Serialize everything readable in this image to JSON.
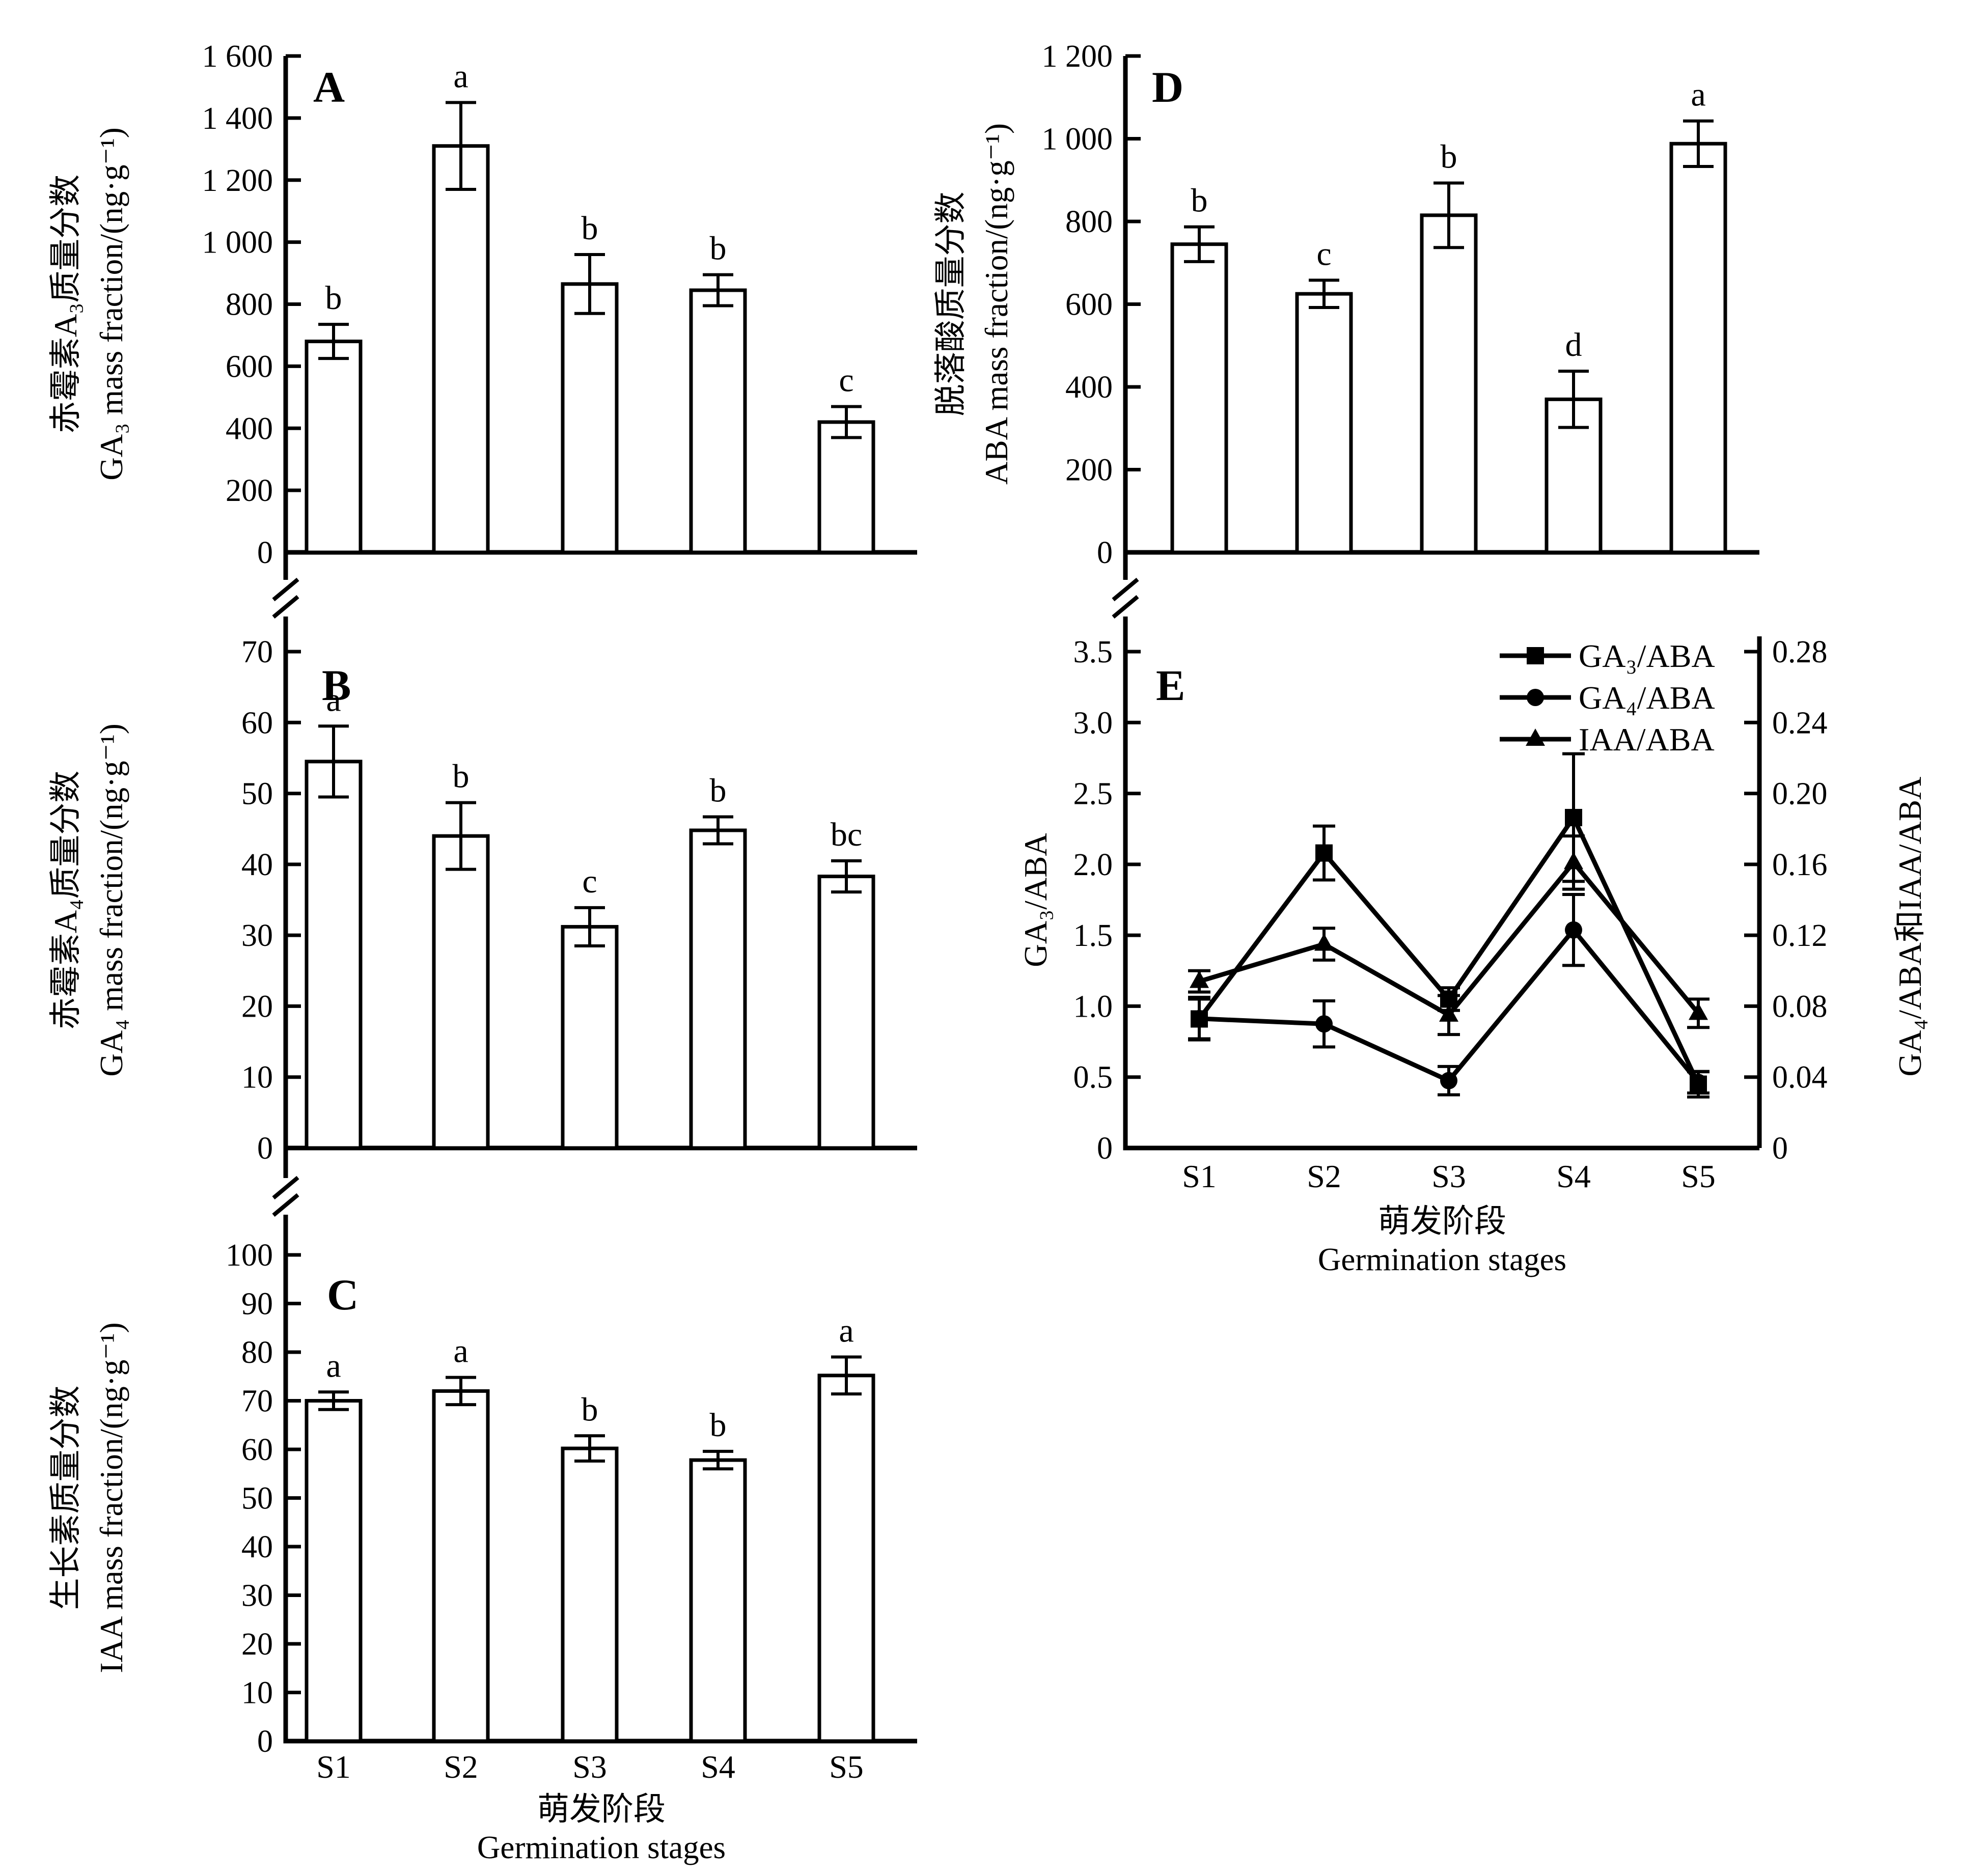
{
  "chart_data": [
    {
      "panel": "A",
      "type": "bar",
      "title": "A",
      "ylabel_zh": "赤霉素A₃质量分数",
      "ylabel_en": "GA₃ mass fraction/(ng·g⁻¹)",
      "categories": [
        "S1",
        "S2",
        "S3",
        "S4",
        "S5"
      ],
      "values": [
        680,
        1310,
        865,
        845,
        420
      ],
      "errors": [
        55,
        140,
        95,
        50,
        50
      ],
      "sig_letters": [
        "b",
        "a",
        "b",
        "b",
        "c"
      ],
      "ylim": [
        0,
        1600
      ],
      "ytick_step": 200,
      "ytick_labels": [
        "0",
        "200",
        "400",
        "600",
        "800",
        "1 000",
        "1 200",
        "1 400",
        "1 600"
      ],
      "bar_fill": "#ffffff",
      "bar_edge": "#000000"
    },
    {
      "panel": "B",
      "type": "bar",
      "title": "B",
      "ylabel_zh": "赤霉素A₄质量分数",
      "ylabel_en": "GA₄ mass fraction/(ng·g⁻¹)",
      "categories": [
        "S1",
        "S2",
        "S3",
        "S4",
        "S5"
      ],
      "values": [
        54.5,
        44,
        31.2,
        44.8,
        38.3
      ],
      "errors": [
        5,
        4.7,
        2.7,
        1.9,
        2.2
      ],
      "sig_letters": [
        "a",
        "b",
        "c",
        "b",
        "bc"
      ],
      "ylim": [
        0,
        70
      ],
      "ytick_step": 10,
      "ytick_labels": [
        "0",
        "10",
        "20",
        "30",
        "40",
        "50",
        "60",
        "70"
      ],
      "bar_fill": "#ffffff",
      "bar_edge": "#000000"
    },
    {
      "panel": "C",
      "type": "bar",
      "title": "C",
      "ylabel_zh": "生长素质量分数",
      "ylabel_en": "IAA mass fraction/(ng·g⁻¹)",
      "categories": [
        "S1",
        "S2",
        "S3",
        "S4",
        "S5"
      ],
      "values": [
        70,
        72,
        60.2,
        57.8,
        75.2
      ],
      "errors": [
        1.8,
        2.8,
        2.6,
        1.8,
        3.8
      ],
      "sig_letters": [
        "a",
        "a",
        "b",
        "b",
        "a"
      ],
      "ylim": [
        0,
        100
      ],
      "ytick_step": 10,
      "ytick_labels": [
        "0",
        "10",
        "20",
        "30",
        "40",
        "50",
        "60",
        "70",
        "80",
        "90",
        "100"
      ],
      "bar_fill": "#ffffff",
      "bar_edge": "#000000"
    },
    {
      "panel": "D",
      "type": "bar",
      "title": "D",
      "ylabel_zh": "脱落酸质量分数",
      "ylabel_en": "ABA mass fraction/(ng·g⁻¹)",
      "categories": [
        "S1",
        "S2",
        "S3",
        "S4",
        "S5"
      ],
      "values": [
        745,
        625,
        815,
        370,
        988
      ],
      "errors": [
        42,
        33,
        78,
        68,
        55
      ],
      "sig_letters": [
        "b",
        "c",
        "b",
        "d",
        "a"
      ],
      "ylim": [
        0,
        1200
      ],
      "ytick_step": 200,
      "ytick_labels": [
        "0",
        "200",
        "400",
        "600",
        "800",
        "1 000",
        "1 200"
      ],
      "bar_fill": "#ffffff",
      "bar_edge": "#000000"
    },
    {
      "panel": "E",
      "type": "line",
      "title": "E",
      "categories": [
        "S1",
        "S2",
        "S3",
        "S4",
        "S5"
      ],
      "left_axis": {
        "label": "GA₃/ABA",
        "ylim": [
          0,
          3.5
        ],
        "ytick_step": 0.5,
        "ytick_labels": [
          "0",
          "0.5",
          "1.0",
          "1.5",
          "2.0",
          "2.5",
          "3.0",
          "3.5"
        ]
      },
      "right_axis": {
        "label": "GA₄/ABA和IAA/ABA",
        "ylim": [
          0,
          0.28
        ],
        "ytick_step": 0.04,
        "ytick_labels": [
          "0",
          "0.04",
          "0.08",
          "0.12",
          "0.16",
          "0.20",
          "0.24",
          "0.28"
        ]
      },
      "series": [
        {
          "name": "GA₃/ABA",
          "marker": "square",
          "axis": "left",
          "values": [
            0.91,
            2.08,
            1.05,
            2.33,
            0.45
          ],
          "errors": [
            0.14,
            0.19,
            0.08,
            0.45,
            0.09
          ]
        },
        {
          "name": "GA₄/ABA",
          "marker": "circle",
          "axis": "right",
          "values": [
            0.073,
            0.07,
            0.038,
            0.123,
            0.037
          ],
          "errors": [
            0.012,
            0.013,
            0.008,
            0.02,
            0.006
          ]
        },
        {
          "name": "IAA/ABA",
          "marker": "triangle",
          "axis": "right",
          "values": [
            0.094,
            0.115,
            0.075,
            0.161,
            0.076
          ],
          "errors": [
            0.006,
            0.009,
            0.011,
            0.015,
            0.008
          ]
        }
      ],
      "legend_position": "top-right"
    }
  ],
  "labels": {
    "xlabel_zh": "萌发阶段",
    "xlabel_en": "Germination stages"
  },
  "colors": {
    "ink": "#000000",
    "background": "#ffffff"
  }
}
